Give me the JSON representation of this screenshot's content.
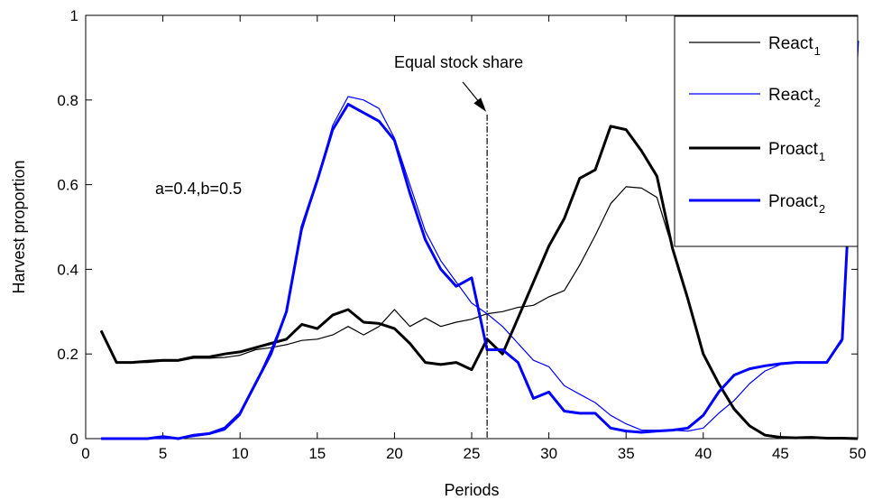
{
  "chart_data": {
    "type": "line",
    "xlabel": "Periods",
    "ylabel": "Harvest proportion",
    "xlim": [
      0,
      50
    ],
    "ylim": [
      0,
      1
    ],
    "xticks": [
      0,
      5,
      10,
      15,
      20,
      25,
      30,
      35,
      40,
      45,
      50
    ],
    "yticks": [
      0,
      0.2,
      0.4,
      0.6,
      0.8,
      1
    ],
    "xtick_labels": [
      "0",
      "5",
      "10",
      "15",
      "20",
      "25",
      "30",
      "35",
      "40",
      "45",
      "50"
    ],
    "ytick_labels": [
      "0",
      "0.2",
      "0.4",
      "0.6",
      "0.8",
      "1"
    ],
    "grid": false,
    "legend_position": "top-right",
    "annotations": [
      {
        "text": "Equal stock share",
        "arrow_to": [
          25,
          0.77
        ],
        "vertical_line_x": 26
      },
      {
        "text": "a=0.4,b=0.5",
        "x": 8.7,
        "y": 0.6
      }
    ],
    "x": [
      1,
      2,
      3,
      4,
      5,
      6,
      7,
      8,
      9,
      10,
      11,
      12,
      13,
      14,
      15,
      16,
      17,
      18,
      19,
      20,
      21,
      22,
      23,
      24,
      25,
      26,
      27,
      28,
      29,
      30,
      31,
      32,
      33,
      34,
      35,
      36,
      37,
      38,
      39,
      40,
      41,
      42,
      43,
      44,
      45,
      46,
      47,
      48,
      49,
      50
    ],
    "series": [
      {
        "name": "React",
        "subscript": "1",
        "color": "#000000",
        "width": "thin",
        "values": [
          0.255,
          0.18,
          0.18,
          0.18,
          0.183,
          0.183,
          0.19,
          0.19,
          0.192,
          0.197,
          0.21,
          0.215,
          0.222,
          0.232,
          0.235,
          0.245,
          0.265,
          0.245,
          0.265,
          0.305,
          0.265,
          0.285,
          0.265,
          0.275,
          0.282,
          0.295,
          0.3,
          0.31,
          0.315,
          0.335,
          0.35,
          0.41,
          0.48,
          0.555,
          0.595,
          0.592,
          0.57,
          0.45,
          0.33,
          0.2,
          0.13,
          0.07,
          0.03,
          0.01,
          0.005,
          0.002,
          0.002,
          0.001,
          0.001,
          0.0
        ]
      },
      {
        "name": "React",
        "subscript": "2",
        "color": "#0000ff",
        "width": "thin",
        "values": [
          0.0,
          0.0,
          0.0,
          0.0,
          0.0,
          0.0,
          0.005,
          0.01,
          0.02,
          0.055,
          0.13,
          0.21,
          0.3,
          0.49,
          0.61,
          0.74,
          0.808,
          0.8,
          0.78,
          0.71,
          0.6,
          0.49,
          0.42,
          0.37,
          0.32,
          0.295,
          0.265,
          0.225,
          0.185,
          0.17,
          0.125,
          0.105,
          0.085,
          0.055,
          0.035,
          0.02,
          0.02,
          0.02,
          0.018,
          0.025,
          0.06,
          0.09,
          0.13,
          0.16,
          0.175,
          0.18,
          0.18,
          0.18,
          0.23,
          0.94
        ]
      },
      {
        "name": "Proact",
        "subscript": "1",
        "color": "#000000",
        "width": "thick",
        "values": [
          0.255,
          0.18,
          0.18,
          0.183,
          0.185,
          0.185,
          0.193,
          0.193,
          0.2,
          0.205,
          0.215,
          0.225,
          0.235,
          0.27,
          0.26,
          0.292,
          0.305,
          0.275,
          0.272,
          0.26,
          0.225,
          0.18,
          0.175,
          0.18,
          0.163,
          0.235,
          0.2,
          0.285,
          0.37,
          0.455,
          0.52,
          0.615,
          0.635,
          0.738,
          0.73,
          0.68,
          0.62,
          0.45,
          0.33,
          0.2,
          0.13,
          0.07,
          0.03,
          0.008,
          0.003,
          0.002,
          0.003,
          0.001,
          0.001,
          0.0
        ]
      },
      {
        "name": "Proact",
        "subscript": "2",
        "color": "#0000ff",
        "width": "thick",
        "values": [
          0.0,
          0.0,
          0.0,
          0.0,
          0.005,
          0.0,
          0.008,
          0.012,
          0.025,
          0.06,
          0.13,
          0.2,
          0.3,
          0.5,
          0.61,
          0.73,
          0.79,
          0.77,
          0.75,
          0.705,
          0.58,
          0.47,
          0.4,
          0.36,
          0.38,
          0.21,
          0.21,
          0.18,
          0.095,
          0.11,
          0.065,
          0.06,
          0.06,
          0.025,
          0.018,
          0.015,
          0.018,
          0.02,
          0.025,
          0.055,
          0.11,
          0.15,
          0.165,
          0.172,
          0.177,
          0.18,
          0.18,
          0.18,
          0.235,
          0.94
        ]
      }
    ]
  }
}
